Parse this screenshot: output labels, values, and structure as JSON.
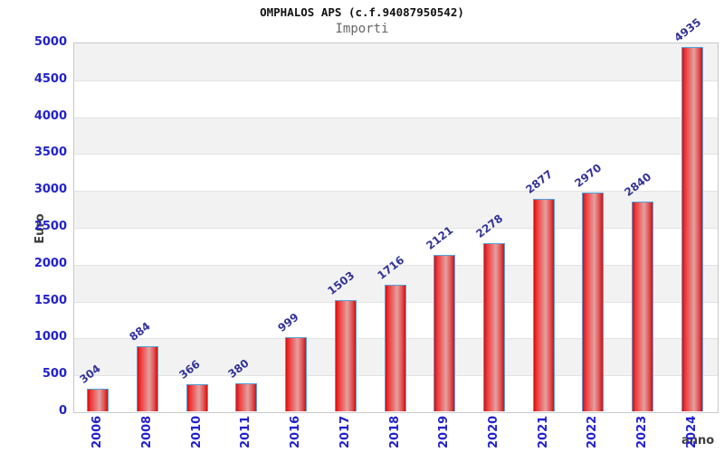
{
  "chart_data": {
    "type": "bar",
    "title": "OMPHALOS APS (c.f.94087950542)",
    "subtitle": "Importi",
    "xlabel": "anno",
    "ylabel": "Euro",
    "categories": [
      "2006",
      "2008",
      "2010",
      "2011",
      "2016",
      "2017",
      "2018",
      "2019",
      "2020",
      "2021",
      "2022",
      "2023",
      "2024"
    ],
    "values": [
      304,
      884,
      366,
      380,
      999,
      1503,
      1716,
      2121,
      2278,
      2877,
      2970,
      2840,
      4935
    ],
    "ylim": [
      0,
      5000
    ],
    "ytick_step": 500,
    "yticks": [
      0,
      500,
      1000,
      1500,
      2000,
      2500,
      3000,
      3500,
      4000,
      4500,
      5000
    ],
    "grid": "horizontal-bands",
    "legend": "none",
    "colors": {
      "tick_label": "#2222cc",
      "value_label": "#333399",
      "axis_title": "#3d3d3d",
      "band_alt": "#f2f2f2",
      "band_base": "#ffffff",
      "bar_border": "#55a0d8",
      "bar_red_dark": "#d40f0f",
      "bar_red_bright": "#ef3838",
      "bar_red_light": "#e5a0a0",
      "title_color": "#111111",
      "subtitle_color": "#666666",
      "plot_border": "#c9c9c9"
    }
  }
}
